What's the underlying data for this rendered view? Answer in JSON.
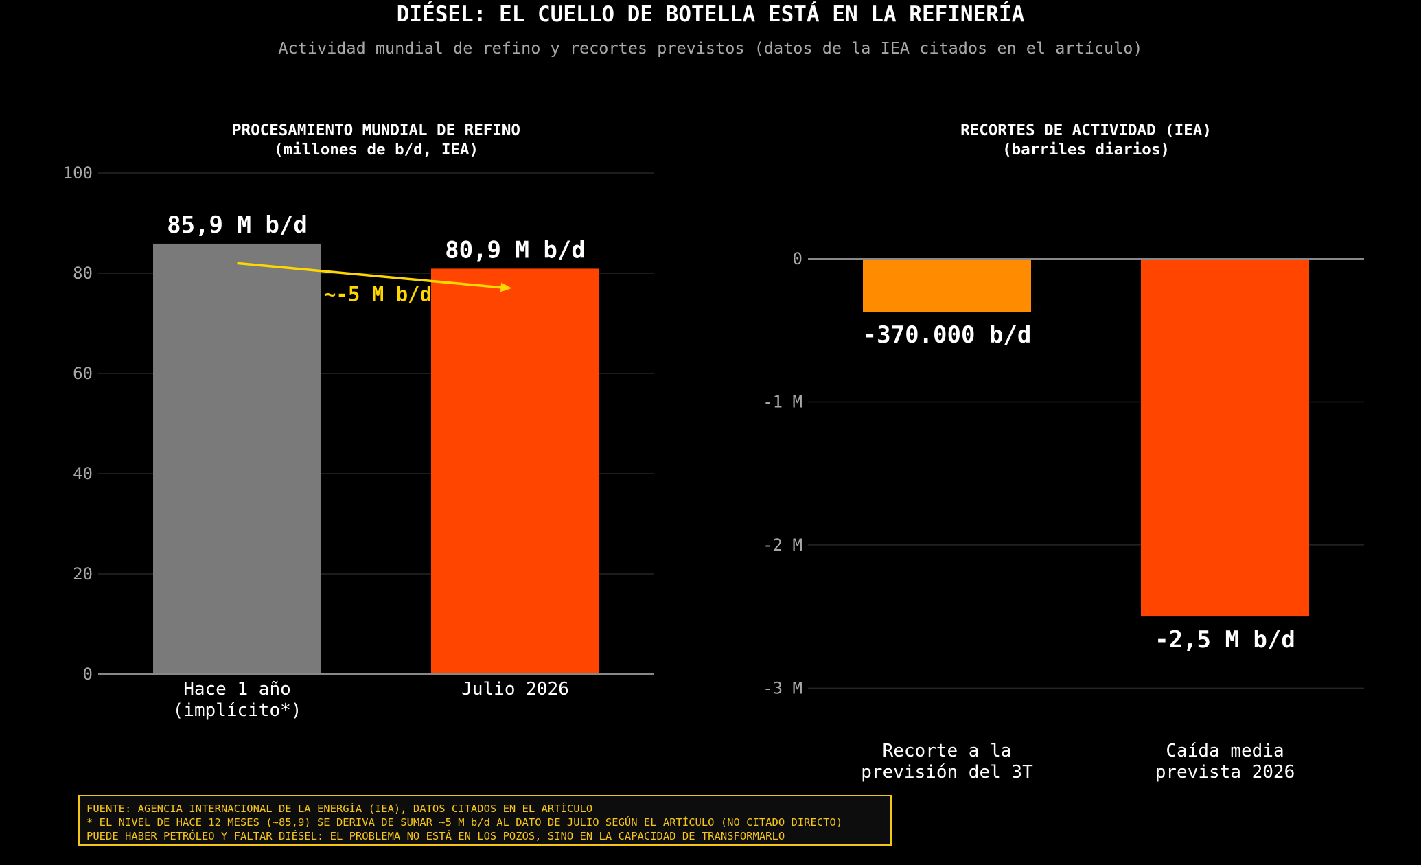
{
  "page": {
    "title": "DIÉSEL: EL CUELLO DE BOTELLA ESTÁ EN LA REFINERÍA",
    "subtitle": "Actividad mundial de refino y recortes previstos (datos de la IEA citados en el artículo)"
  },
  "colors": {
    "background": "#000000",
    "gray_bar": "#7a7a7a",
    "orange_red": "#ff4500",
    "orange": "#ff8c00",
    "yellow": "#ffd700",
    "grid": "#262626",
    "tick_text": "#a8a8a8"
  },
  "chart_data": [
    {
      "type": "bar",
      "title": "PROCESAMIENTO MUNDIAL DE REFINO\n(millones de b/d, IEA)",
      "categories": [
        "Hace 1 año\n(implícito*)",
        "Julio 2026"
      ],
      "values": [
        85.9,
        80.9
      ],
      "value_labels": [
        "85,9 M b/d",
        "80,9 M b/d"
      ],
      "bar_colors": [
        "#7a7a7a",
        "#ff4500"
      ],
      "ylim": [
        0,
        100
      ],
      "yticks": [
        0,
        20,
        40,
        60,
        80,
        100
      ],
      "ytick_labels": [
        "0",
        "20",
        "40",
        "60",
        "80",
        "100"
      ],
      "grid": true,
      "annotation": {
        "text": "~-5 M b/d",
        "color": "#ffd700",
        "arrow_from": {
          "category": 0,
          "y": 82
        },
        "arrow_to": {
          "category": 1,
          "y": 77
        }
      }
    },
    {
      "type": "bar",
      "title": "RECORTES DE ACTIVIDAD (IEA)\n(barriles diarios)",
      "categories": [
        "Recorte a la\nprevisión del 3T",
        "Caída media\nprevista 2026"
      ],
      "values": [
        -370000,
        -2500000
      ],
      "value_labels": [
        "-370.000 b/d",
        "-2,5 M b/d"
      ],
      "bar_colors": [
        "#ff8c00",
        "#ff4500"
      ],
      "ylim": [
        -3200000,
        600000
      ],
      "yticks": [
        0,
        -1000000,
        -2000000,
        -3000000
      ],
      "ytick_labels": [
        "0",
        "-1 M",
        "-2 M",
        "-3 M"
      ],
      "grid": true
    }
  ],
  "footer": {
    "line1": "FUENTE: AGENCIA INTERNACIONAL DE LA ENERGÍA (IEA), DATOS CITADOS EN EL ARTÍCULO",
    "line2": "* EL NIVEL DE HACE 12 MESES (~85,9) SE DERIVA DE SUMAR ~5 M b/d AL DATO DE JULIO SEGÚN EL ARTÍCULO (NO CITADO DIRECTO)",
    "line3": "PUEDE HABER PETRÓLEO Y FALTAR DIÉSEL: EL PROBLEMA NO ESTÁ EN LOS POZOS, SINO EN LA CAPACIDAD DE TRANSFORMARLO"
  }
}
